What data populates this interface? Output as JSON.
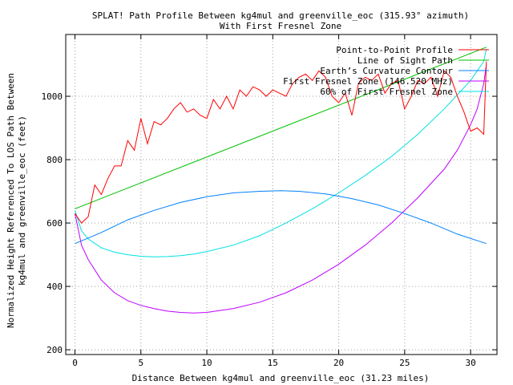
{
  "chart_data": {
    "type": "line",
    "title": "SPLAT! Path Profile Between kg4mul and greenville_eoc (315.93° azimuth)",
    "subtitle": "With First Fresnel Zone",
    "xlabel": "Distance Between kg4mul and greenville_eoc (31.23 miles)",
    "ylabel_line1": "Normalized Height Referenced To LOS Path Between",
    "ylabel_line2": "kg4mul and greenville_eoc (feet)",
    "xlim": [
      -0.7,
      32
    ],
    "ylim": [
      185,
      1195
    ],
    "x_ticks": [
      0,
      5,
      10,
      15,
      20,
      25,
      30
    ],
    "y_ticks": [
      200,
      400,
      600,
      800,
      1000
    ],
    "grid": true,
    "legend_position": "top-right",
    "colors": {
      "profile": "#ff0000",
      "los": "#00c000",
      "curvature": "#0080ff",
      "fresnel": "#c000ff",
      "fresnel60": "#00e0e0"
    },
    "series": [
      {
        "name": "Point-to-Point Profile",
        "x": [
          0,
          0.5,
          1,
          1.5,
          2,
          2.5,
          3,
          3.5,
          4,
          4.5,
          5,
          5.5,
          6,
          6.5,
          7,
          7.5,
          8,
          8.5,
          9,
          9.5,
          10,
          10.5,
          11,
          11.5,
          12,
          12.5,
          13,
          13.5,
          14,
          14.5,
          15,
          15.5,
          16,
          16.5,
          17,
          17.5,
          18,
          18.5,
          19,
          19.5,
          20,
          20.5,
          21,
          21.5,
          22,
          22.5,
          23,
          23.5,
          24,
          24.5,
          25,
          25.5,
          26,
          26.5,
          27,
          27.5,
          28,
          28.5,
          29,
          29.5,
          30,
          30.5,
          31,
          31.2
        ],
        "values": [
          630,
          600,
          620,
          720,
          690,
          740,
          780,
          780,
          860,
          830,
          930,
          850,
          920,
          910,
          930,
          960,
          980,
          950,
          960,
          940,
          930,
          990,
          960,
          1000,
          960,
          1020,
          1000,
          1030,
          1020,
          1000,
          1020,
          1010,
          1000,
          1040,
          1060,
          1070,
          1050,
          1080,
          1060,
          1000,
          980,
          1010,
          940,
          1040,
          1060,
          1050,
          1070,
          1010,
          1040,
          1050,
          960,
          1000,
          1050,
          1040,
          1060,
          1000,
          1080,
          1060,
          1000,
          950,
          890,
          900,
          880,
          1110
        ]
      },
      {
        "name": "Line of Sight Path",
        "x": [
          0,
          31.2
        ],
        "values": [
          645,
          1155
        ]
      },
      {
        "name": "Earth’s Curvature Contour",
        "x": [
          0,
          2,
          4,
          6,
          8,
          10,
          12,
          14,
          15.6,
          17,
          19,
          21,
          23,
          25,
          27,
          29,
          31.2
        ],
        "values": [
          535,
          570,
          610,
          640,
          665,
          683,
          695,
          700,
          702,
          700,
          692,
          677,
          657,
          630,
          600,
          565,
          535
        ]
      },
      {
        "name": "First Fresnel Zone (146.520 MHz)",
        "x": [
          0,
          0.5,
          1,
          2,
          3,
          4,
          5,
          6,
          7,
          8,
          9,
          10,
          12,
          14,
          16,
          18,
          20,
          22,
          24,
          26,
          28,
          29,
          30,
          30.5,
          31,
          31.2
        ],
        "values": [
          630,
          530,
          485,
          420,
          380,
          355,
          340,
          330,
          322,
          318,
          316,
          318,
          330,
          350,
          380,
          420,
          470,
          530,
          600,
          680,
          770,
          830,
          910,
          960,
          1040,
          1100
        ]
      },
      {
        "name": "60% of First Fresnel Zone",
        "x": [
          0,
          0.5,
          1,
          2,
          3,
          4,
          5,
          6,
          7,
          8,
          9,
          10,
          12,
          14,
          16,
          18,
          20,
          22,
          24,
          26,
          28,
          30,
          31,
          31.2
        ],
        "values": [
          640,
          575,
          550,
          522,
          508,
          500,
          495,
          493,
          494,
          497,
          502,
          510,
          530,
          560,
          600,
          645,
          695,
          750,
          810,
          880,
          960,
          1050,
          1110,
          1150
        ]
      }
    ]
  }
}
